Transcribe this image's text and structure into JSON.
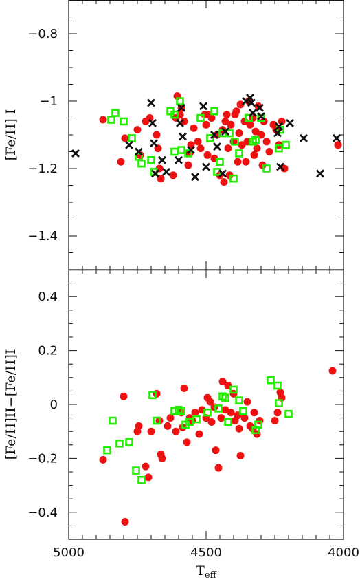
{
  "chart_data": [
    {
      "type": "scatter",
      "ylabel": "[Fe/H] I",
      "xlim": [
        5000,
        4000
      ],
      "ylim": [
        -1.5,
        -0.7
      ],
      "xticks": [
        5000,
        4500,
        4000
      ],
      "xminor_step": 50,
      "yticks": [
        {
          "v": -0.8,
          "label": "−0.8"
        },
        {
          "v": -1.0,
          "label": "−1"
        },
        {
          "v": -1.2,
          "label": "−1.2"
        },
        {
          "v": -1.4,
          "label": "−1.4"
        }
      ],
      "yminor_step": 0.05,
      "series": [
        {
          "marker": "circle",
          "color": "#ee1111",
          "points": [
            [
              4875,
              -1.055
            ],
            [
              4810,
              -1.18
            ],
            [
              4795,
              -1.11
            ],
            [
              4750,
              -1.085
            ],
            [
              4740,
              -1.16
            ],
            [
              4720,
              -1.06
            ],
            [
              4705,
              -1.05
            ],
            [
              4680,
              -1.1
            ],
            [
              4675,
              -1.14
            ],
            [
              4670,
              -1.2
            ],
            [
              4665,
              -1.23
            ],
            [
              4620,
              -1.22
            ],
            [
              4610,
              -1.05
            ],
            [
              4605,
              -0.985
            ],
            [
              4595,
              -1.04
            ],
            [
              4590,
              -1.02
            ],
            [
              4580,
              -1.06
            ],
            [
              4565,
              -1.19
            ],
            [
              4560,
              -1.155
            ],
            [
              4555,
              -1.13
            ],
            [
              4545,
              -1.08
            ],
            [
              4530,
              -1.12
            ],
            [
              4520,
              -1.14
            ],
            [
              4505,
              -1.04
            ],
            [
              4500,
              -1.07
            ],
            [
              4495,
              -1.16
            ],
            [
              4490,
              -1.04
            ],
            [
              4480,
              -1.05
            ],
            [
              4470,
              -1.17
            ],
            [
              4460,
              -1.1
            ],
            [
              4450,
              -1.22
            ],
            [
              4440,
              -1.085
            ],
            [
              4435,
              -1.24
            ],
            [
              4430,
              -1.06
            ],
            [
              4425,
              -1.04
            ],
            [
              4420,
              -1.14
            ],
            [
              4415,
              -1.22
            ],
            [
              4410,
              -1.07
            ],
            [
              4400,
              -1.12
            ],
            [
              4395,
              -1.04
            ],
            [
              4390,
              -1.03
            ],
            [
              4385,
              -1.18
            ],
            [
              4380,
              -1.095
            ],
            [
              4375,
              -1.01
            ],
            [
              4370,
              -1.13
            ],
            [
              4360,
              -1.06
            ],
            [
              4355,
              -1.18
            ],
            [
              4350,
              -1.12
            ],
            [
              4345,
              -1.0
            ],
            [
              4340,
              -1.07
            ],
            [
              4330,
              -1.05
            ],
            [
              4325,
              -1.16
            ],
            [
              4320,
              -1.09
            ],
            [
              4315,
              -1.14
            ],
            [
              4310,
              -1.015
            ],
            [
              4300,
              -1.1
            ],
            [
              4295,
              -1.19
            ],
            [
              4290,
              -1.06
            ],
            [
              4280,
              -1.12
            ],
            [
              4270,
              -1.15
            ],
            [
              4255,
              -1.07
            ],
            [
              4245,
              -1.085
            ],
            [
              4235,
              -1.13
            ],
            [
              4225,
              -1.06
            ],
            [
              4215,
              -1.2
            ],
            [
              4020,
              -1.13
            ]
          ]
        },
        {
          "marker": "open-square",
          "color": "#22ee00",
          "points": [
            [
              4845,
              -1.055
            ],
            [
              4830,
              -1.035
            ],
            [
              4800,
              -1.06
            ],
            [
              4770,
              -1.11
            ],
            [
              4745,
              -1.165
            ],
            [
              4735,
              -1.185
            ],
            [
              4700,
              -1.175
            ],
            [
              4690,
              -1.21
            ],
            [
              4630,
              -1.03
            ],
            [
              4615,
              -1.04
            ],
            [
              4615,
              -1.15
            ],
            [
              4595,
              -1.0
            ],
            [
              4590,
              -1.145
            ],
            [
              4565,
              -1.155
            ],
            [
              4520,
              -1.05
            ],
            [
              4485,
              -1.11
            ],
            [
              4470,
              -1.03
            ],
            [
              4460,
              -1.21
            ],
            [
              4450,
              -1.18
            ],
            [
              4440,
              -1.095
            ],
            [
              4415,
              -1.095
            ],
            [
              4400,
              -1.23
            ],
            [
              4395,
              -1.12
            ],
            [
              4380,
              -1.155
            ],
            [
              4345,
              -1.05
            ],
            [
              4330,
              -1.12
            ],
            [
              4320,
              -1.115
            ],
            [
              4300,
              -1.05
            ],
            [
              4280,
              -1.2
            ],
            [
              4235,
              -1.14
            ],
            [
              4230,
              -1.085
            ],
            [
              4210,
              -1.13
            ]
          ]
        },
        {
          "marker": "cross",
          "color": "#111111",
          "points": [
            [
              4975,
              -1.155
            ],
            [
              4780,
              -1.13
            ],
            [
              4745,
              -1.15
            ],
            [
              4700,
              -1.005
            ],
            [
              4695,
              -1.065
            ],
            [
              4690,
              -1.125
            ],
            [
              4685,
              -1.215
            ],
            [
              4660,
              -1.175
            ],
            [
              4645,
              -1.21
            ],
            [
              4600,
              -1.175
            ],
            [
              4595,
              -1.065
            ],
            [
              4590,
              -1.02
            ],
            [
              4585,
              -1.105
            ],
            [
              4555,
              -1.145
            ],
            [
              4540,
              -1.225
            ],
            [
              4510,
              -1.015
            ],
            [
              4500,
              -1.195
            ],
            [
              4470,
              -1.1
            ],
            [
              4460,
              -1.135
            ],
            [
              4440,
              -1.215
            ],
            [
              4430,
              -1.09
            ],
            [
              4355,
              -1.0
            ],
            [
              4340,
              -0.99
            ],
            [
              4335,
              -1.005
            ],
            [
              4330,
              -1.035
            ],
            [
              4305,
              -1.02
            ],
            [
              4300,
              -1.045
            ],
            [
              4240,
              -1.095
            ],
            [
              4235,
              -1.075
            ],
            [
              4230,
              -1.195
            ],
            [
              4195,
              -1.065
            ],
            [
              4145,
              -1.11
            ],
            [
              4085,
              -1.215
            ],
            [
              4025,
              -1.11
            ]
          ]
        }
      ]
    },
    {
      "type": "scatter",
      "xlabel": "T",
      "xlabel_sub": "eff",
      "ylabel": "[Fe/H]II−[Fe/H]I",
      "xlim": [
        5000,
        4000
      ],
      "ylim": [
        -0.5,
        0.5
      ],
      "xticks": [
        5000,
        4500,
        4000
      ],
      "xtick_labels": [
        "5000",
        "4500",
        "4000"
      ],
      "xminor_step": 50,
      "yticks": [
        {
          "v": 0.4,
          "label": "0.4"
        },
        {
          "v": 0.2,
          "label": "0.2"
        },
        {
          "v": 0.0,
          "label": "0"
        },
        {
          "v": -0.2,
          "label": "−0.2"
        },
        {
          "v": -0.4,
          "label": "−0.4"
        }
      ],
      "yminor_step": 0.05,
      "series": [
        {
          "marker": "circle",
          "color": "#ee1111",
          "points": [
            [
              4875,
              -0.205
            ],
            [
              4800,
              0.03
            ],
            [
              4795,
              -0.435
            ],
            [
              4750,
              -0.1
            ],
            [
              4745,
              -0.08
            ],
            [
              4720,
              -0.23
            ],
            [
              4710,
              -0.27
            ],
            [
              4700,
              -0.1
            ],
            [
              4680,
              0.04
            ],
            [
              4670,
              -0.06
            ],
            [
              4665,
              -0.185
            ],
            [
              4660,
              -0.2
            ],
            [
              4640,
              -0.08
            ],
            [
              4630,
              -0.05
            ],
            [
              4610,
              -0.1
            ],
            [
              4590,
              -0.03
            ],
            [
              4585,
              -0.085
            ],
            [
              4580,
              0.06
            ],
            [
              4570,
              -0.14
            ],
            [
              4560,
              -0.05
            ],
            [
              4550,
              -0.06
            ],
            [
              4540,
              -0.03
            ],
            [
              4525,
              -0.11
            ],
            [
              4515,
              -0.02
            ],
            [
              4500,
              -0.05
            ],
            [
              4495,
              0.025
            ],
            [
              4485,
              0.01
            ],
            [
              4480,
              -0.065
            ],
            [
              4470,
              -0.01
            ],
            [
              4465,
              -0.17
            ],
            [
              4455,
              -0.235
            ],
            [
              4445,
              -0.05
            ],
            [
              4440,
              0.085
            ],
            [
              4430,
              -0.02
            ],
            [
              4420,
              0.07
            ],
            [
              4410,
              -0.03
            ],
            [
              4400,
              0.04
            ],
            [
              4395,
              -0.06
            ],
            [
              4385,
              -0.04
            ],
            [
              4380,
              -0.09
            ],
            [
              4375,
              -0.19
            ],
            [
              4360,
              -0.05
            ],
            [
              4350,
              0.01
            ],
            [
              4340,
              -0.08
            ],
            [
              4330,
              -0.09
            ],
            [
              4325,
              -0.03
            ],
            [
              4315,
              -0.11
            ],
            [
              4305,
              -0.06
            ],
            [
              4250,
              -0.06
            ],
            [
              4240,
              -0.03
            ],
            [
              4230,
              0.045
            ],
            [
              4225,
              0.025
            ],
            [
              4040,
              0.125
            ]
          ]
        },
        {
          "marker": "open-square",
          "color": "#22ee00",
          "points": [
            [
              4860,
              -0.17
            ],
            [
              4840,
              -0.06
            ],
            [
              4815,
              -0.145
            ],
            [
              4780,
              -0.14
            ],
            [
              4755,
              -0.245
            ],
            [
              4735,
              -0.28
            ],
            [
              4695,
              0.035
            ],
            [
              4680,
              -0.06
            ],
            [
              4615,
              -0.025
            ],
            [
              4600,
              -0.02
            ],
            [
              4590,
              -0.025
            ],
            [
              4575,
              -0.075
            ],
            [
              4560,
              -0.065
            ],
            [
              4535,
              -0.055
            ],
            [
              4495,
              -0.03
            ],
            [
              4455,
              -0.015
            ],
            [
              4440,
              0.03
            ],
            [
              4430,
              0.025
            ],
            [
              4420,
              -0.065
            ],
            [
              4400,
              0.055
            ],
            [
              4380,
              0.015
            ],
            [
              4365,
              -0.025
            ],
            [
              4320,
              -0.095
            ],
            [
              4310,
              -0.075
            ],
            [
              4265,
              0.09
            ],
            [
              4240,
              0.07
            ],
            [
              4235,
              0.005
            ],
            [
              4200,
              -0.035
            ]
          ]
        }
      ]
    }
  ]
}
